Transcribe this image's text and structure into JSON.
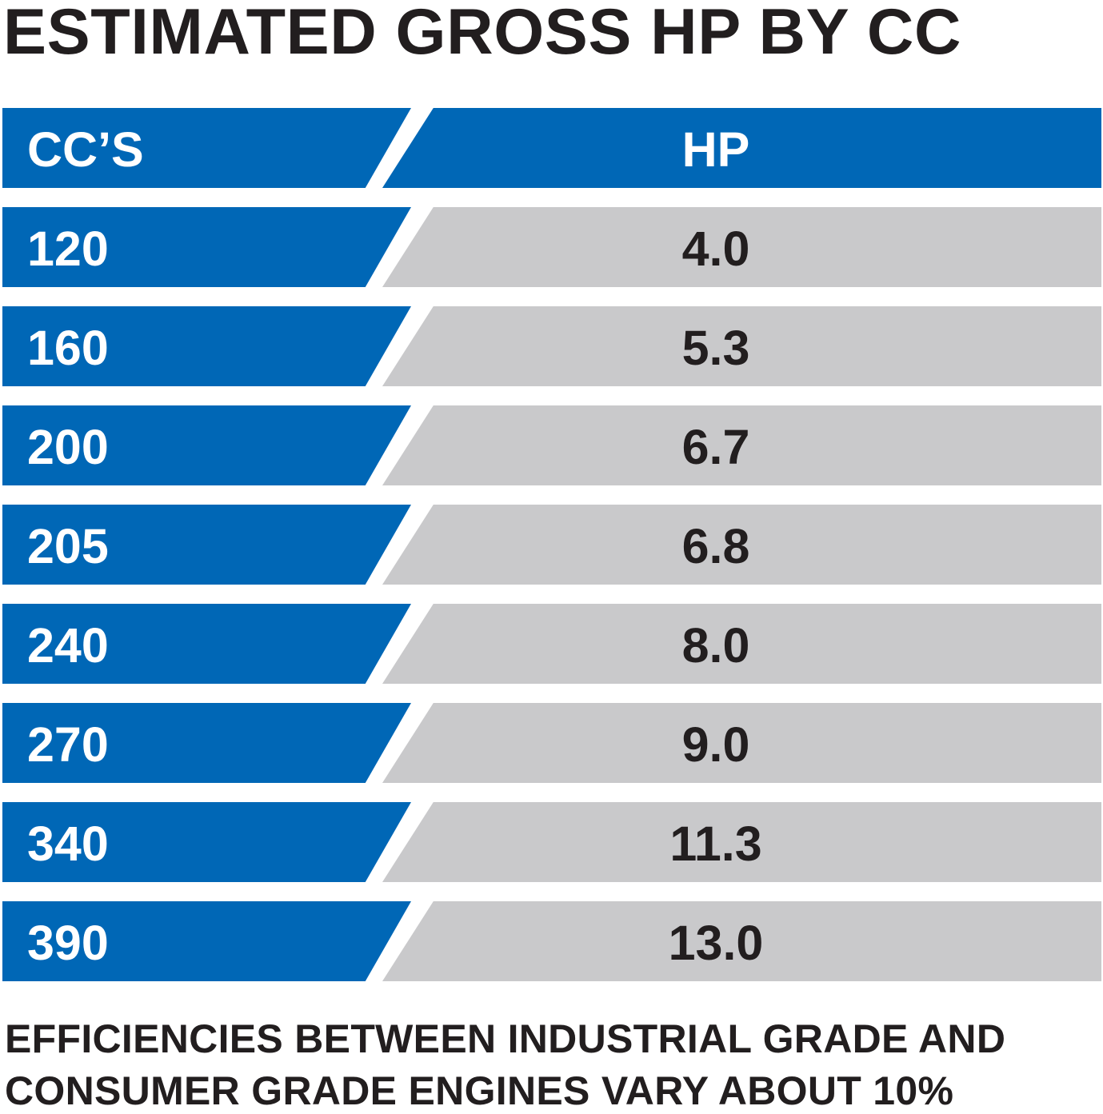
{
  "title": "ESTIMATED GROSS HP BY CC",
  "table": {
    "header": {
      "cc": "CC’S",
      "hp": "HP"
    },
    "rows": [
      {
        "cc": "120",
        "hp": "4.0"
      },
      {
        "cc": "160",
        "hp": "5.3"
      },
      {
        "cc": "200",
        "hp": "6.7"
      },
      {
        "cc": "205",
        "hp": "6.8"
      },
      {
        "cc": "240",
        "hp": "8.0"
      },
      {
        "cc": "270",
        "hp": "9.0"
      },
      {
        "cc": "340",
        "hp": "11.3"
      },
      {
        "cc": "390",
        "hp": "13.0"
      }
    ]
  },
  "footnote": {
    "line1": "EFFICIENCIES BETWEEN INDUSTRIAL GRADE AND",
    "line2": "CONSUMER GRADE ENGINES VARY ABOUT 10%"
  },
  "colors": {
    "blue": "#0067b6",
    "gray": "#c9c9cb",
    "text_dark": "#221e1f"
  }
}
